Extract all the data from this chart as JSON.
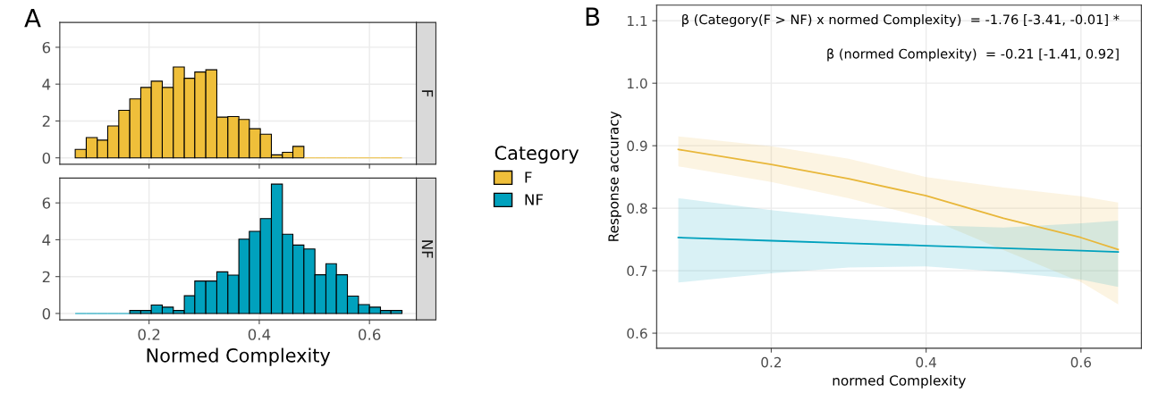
{
  "chart_data": [
    {
      "type": "histogram",
      "annotations": [
        "A"
      ],
      "legend": "right",
      "legend_title": "Category",
      "tick_labels": "y",
      "grid": true,
      "bins": [
        0.066,
        0.086,
        0.106,
        0.125,
        0.145,
        0.165,
        0.185,
        0.204,
        0.224,
        0.244,
        0.264,
        0.283,
        0.303,
        0.323,
        0.343,
        0.363,
        0.382,
        0.402,
        0.422,
        0.442,
        0.461,
        0.481,
        0.501,
        0.521,
        0.54,
        0.56,
        0.58,
        0.6,
        0.62,
        0.639,
        0.659
      ],
      "xlim": [
        0.038,
        0.685
      ],
      "xticks": [
        0.2,
        0.4,
        0.6
      ],
      "ylim": [
        -0.35,
        7.35
      ],
      "yticks": [
        0,
        2,
        4,
        6
      ],
      "series": [
        {
          "name": "F",
          "color": "#efbf3a",
          "values": [
            0.46,
            1.1,
            0.96,
            1.73,
            2.58,
            3.2,
            3.82,
            4.16,
            3.82,
            4.93,
            4.32,
            4.66,
            4.78,
            2.21,
            2.24,
            2.08,
            1.58,
            1.28,
            0.16,
            0.3,
            0.62,
            0,
            0,
            0,
            0,
            0,
            0,
            0,
            0,
            0
          ]
        }
      ]
    },
    {
      "type": "histogram",
      "xlabel": "Normed Complexity",
      "grid": true,
      "bins": [
        0.066,
        0.086,
        0.106,
        0.125,
        0.145,
        0.165,
        0.185,
        0.204,
        0.224,
        0.244,
        0.264,
        0.283,
        0.303,
        0.323,
        0.343,
        0.363,
        0.382,
        0.402,
        0.422,
        0.442,
        0.461,
        0.481,
        0.501,
        0.521,
        0.54,
        0.56,
        0.58,
        0.6,
        0.62,
        0.639,
        0.659
      ],
      "xlim": [
        0.038,
        0.685
      ],
      "xticks": [
        0.2,
        0.4,
        0.6
      ],
      "ylim": [
        -0.35,
        7.35
      ],
      "yticks": [
        0,
        2,
        4,
        6
      ],
      "series": [
        {
          "name": "NF",
          "color": "#00a1bd",
          "values": [
            0,
            0,
            0,
            0,
            0,
            0.16,
            0.16,
            0.46,
            0.34,
            0.16,
            0.96,
            1.76,
            1.76,
            2.26,
            2.08,
            4.03,
            4.46,
            5.15,
            7.02,
            4.3,
            3.71,
            3.5,
            2.1,
            2.7,
            2.1,
            0.94,
            0.48,
            0.34,
            0.16,
            0.16
          ]
        }
      ]
    },
    {
      "type": "line",
      "xlabel": "normed Complexity",
      "ylabel": "Response accuracy",
      "grid": true,
      "annotations": [
        "B",
        "β (Category(F > NF) x normed Complexity)  = -1.76 [-3.41, -0.01] *",
        "β (normed Complexity)  = -0.21 [-1.41, 0.92]"
      ],
      "xlim": [
        0.052,
        0.678
      ],
      "xticks": [
        0.2,
        0.4,
        0.6
      ],
      "ylim": [
        0.576,
        1.125
      ],
      "yticks": [
        0.6,
        0.7,
        0.8,
        0.9,
        {
          "value": 1.0,
          "label": "1.0"
        },
        1.1
      ],
      "series": [
        {
          "color": "#e8b73a",
          "x": [
            0.08,
            0.2,
            0.3,
            0.4,
            0.5,
            0.6,
            0.648
          ],
          "values": [
            0.894,
            0.87,
            0.847,
            0.82,
            0.784,
            0.753,
            0.734
          ],
          "upper": [
            0.915,
            0.899,
            0.879,
            0.85,
            0.833,
            0.819,
            0.809
          ],
          "lower": [
            0.867,
            0.842,
            0.816,
            0.785,
            0.733,
            0.682,
            0.646
          ]
        },
        {
          "color": "#00a1bd",
          "x": [
            0.08,
            0.2,
            0.3,
            0.4,
            0.5,
            0.6,
            0.648
          ],
          "values": [
            0.753,
            0.748,
            0.744,
            0.74,
            0.736,
            0.732,
            0.73
          ],
          "upper": [
            0.816,
            0.797,
            0.784,
            0.773,
            0.769,
            0.776,
            0.78
          ],
          "lower": [
            0.681,
            0.696,
            0.705,
            0.707,
            0.698,
            0.686,
            0.674
          ]
        }
      ]
    }
  ]
}
